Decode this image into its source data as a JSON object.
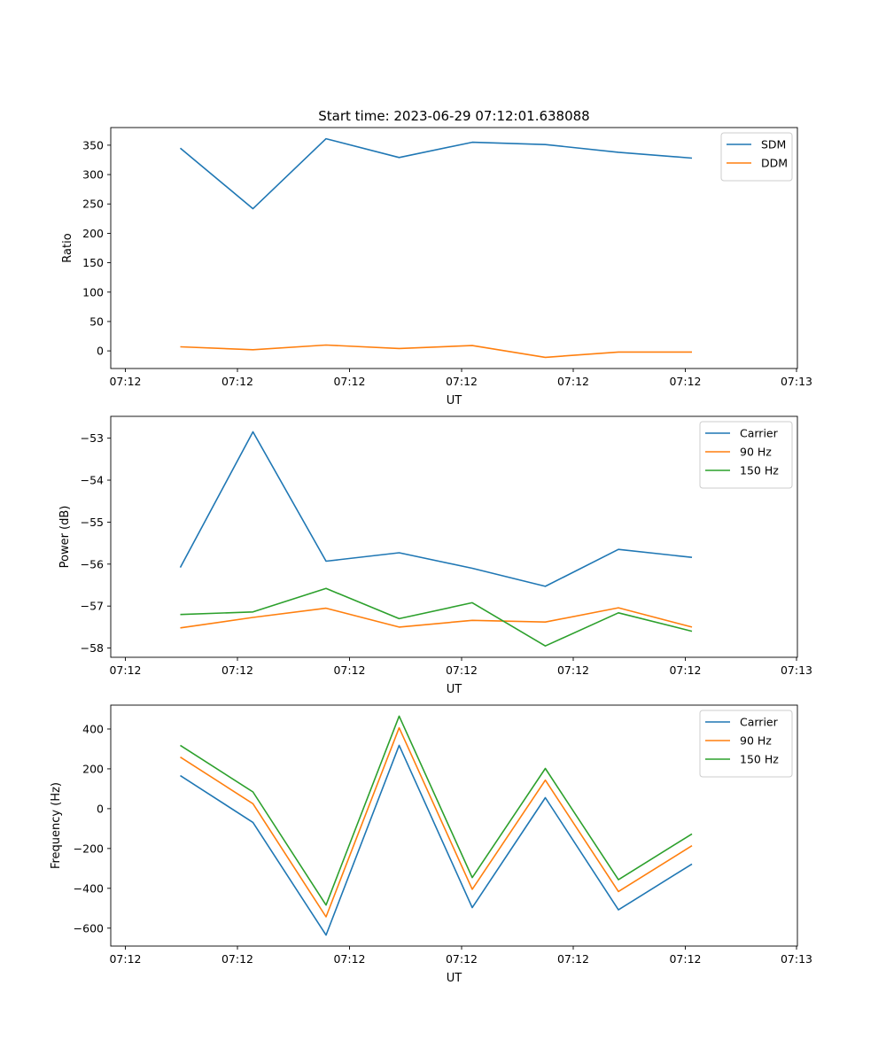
{
  "title": "Start time: 2023-06-29 07:12:01.638088",
  "chart_data": [
    {
      "type": "line",
      "xlabel": "UT",
      "ylabel": "Ratio",
      "x_tick_labels": [
        "07:12",
        "07:12",
        "07:12",
        "07:12",
        "07:12",
        "07:12",
        "07:13"
      ],
      "yticks": [
        0,
        50,
        100,
        150,
        200,
        250,
        300,
        350
      ],
      "ylim": [
        -30,
        380
      ],
      "grid": false,
      "legend_position": "upper right",
      "series": [
        {
          "name": "SDM",
          "color": "#1f77b4",
          "values": [
            345,
            242,
            361,
            329,
            355,
            351,
            338,
            328
          ]
        },
        {
          "name": "DDM",
          "color": "#ff7f0e",
          "values": [
            7,
            2,
            10,
            4,
            9,
            -11,
            -2,
            -2
          ]
        }
      ]
    },
    {
      "type": "line",
      "xlabel": "UT",
      "ylabel": "Power (dB)",
      "x_tick_labels": [
        "07:12",
        "07:12",
        "07:12",
        "07:12",
        "07:12",
        "07:12",
        "07:13"
      ],
      "yticks": [
        -58,
        -57,
        -56,
        -55,
        -54,
        -53
      ],
      "ytick_labels": [
        "−58",
        "−57",
        "−56",
        "−55",
        "−54",
        "−53"
      ],
      "ylim": [
        -58.22,
        -52.48
      ],
      "grid": false,
      "legend_position": "upper right",
      "series": [
        {
          "name": "Carrier",
          "color": "#1f77b4",
          "values": [
            -56.08,
            -52.85,
            -55.93,
            -55.73,
            -56.1,
            -56.53,
            -55.65,
            -55.84
          ]
        },
        {
          "name": "90 Hz",
          "color": "#ff7f0e",
          "values": [
            -57.52,
            -57.27,
            -57.05,
            -57.5,
            -57.34,
            -57.38,
            -57.04,
            -57.5
          ]
        },
        {
          "name": "150 Hz",
          "color": "#2ca02c",
          "values": [
            -57.2,
            -57.14,
            -56.58,
            -57.3,
            -56.92,
            -57.95,
            -57.16,
            -57.6
          ]
        }
      ]
    },
    {
      "type": "line",
      "xlabel": "UT",
      "ylabel": "Frequency (Hz)",
      "x_tick_labels": [
        "07:12",
        "07:12",
        "07:12",
        "07:12",
        "07:12",
        "07:12",
        "07:13"
      ],
      "yticks": [
        -600,
        -400,
        -200,
        0,
        200,
        400
      ],
      "ytick_labels": [
        "−600",
        "−400",
        "−200",
        "0",
        "200",
        "400"
      ],
      "ylim": [
        -690,
        520
      ],
      "grid": false,
      "legend_position": "upper right",
      "series": [
        {
          "name": "Carrier",
          "color": "#1f77b4",
          "values": [
            166,
            -69,
            -635,
            318,
            -497,
            55,
            -508,
            -278
          ]
        },
        {
          "name": "90 Hz",
          "color": "#ff7f0e",
          "values": [
            259,
            25,
            -543,
            406,
            -405,
            143,
            -416,
            -186
          ]
        },
        {
          "name": "150 Hz",
          "color": "#2ca02c",
          "values": [
            318,
            84,
            -484,
            465,
            -346,
            202,
            -357,
            -127
          ]
        }
      ]
    }
  ]
}
